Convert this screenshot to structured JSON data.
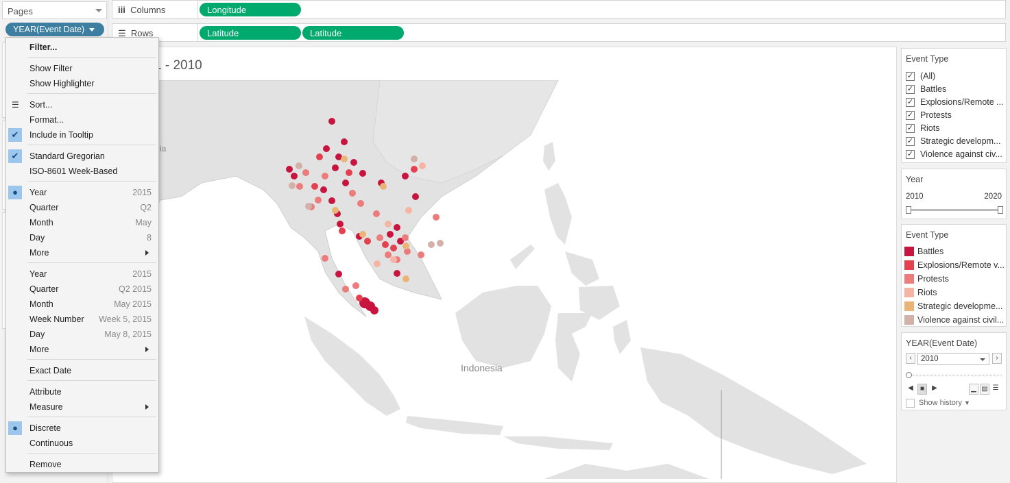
{
  "pages": {
    "header": "Pages",
    "pill_label": "YEAR(Event Date)"
  },
  "shelves": {
    "columns_label": "Columns",
    "rows_label": "Rows",
    "columns_pills": [
      "Longitude"
    ],
    "rows_pills": [
      "Latitude",
      "Latitude"
    ]
  },
  "view": {
    "title": "1 - 2010",
    "map_label": "Indonesia",
    "left_edge_label": "ia"
  },
  "menu": {
    "filter": "Filter...",
    "show_filter": "Show Filter",
    "show_highlighter": "Show Highlighter",
    "sort": "Sort...",
    "format": "Format...",
    "include_tooltip": "Include in Tooltip",
    "standard_gregorian": "Standard Gregorian",
    "iso_week": "ISO-8601 Week-Based",
    "discrete_parts": [
      {
        "label": "Year",
        "value": "2015"
      },
      {
        "label": "Quarter",
        "value": "Q2"
      },
      {
        "label": "Month",
        "value": "May"
      },
      {
        "label": "Day",
        "value": "8"
      },
      {
        "label": "More",
        "value": ""
      }
    ],
    "exact_parts": [
      {
        "label": "Year",
        "value": "2015"
      },
      {
        "label": "Quarter",
        "value": "Q2 2015"
      },
      {
        "label": "Month",
        "value": "May 2015"
      },
      {
        "label": "Week Number",
        "value": "Week 5, 2015"
      },
      {
        "label": "Day",
        "value": "May 8, 2015"
      },
      {
        "label": "More",
        "value": ""
      }
    ],
    "exact_date": "Exact Date",
    "attribute": "Attribute",
    "measure": "Measure",
    "discrete": "Discrete",
    "continuous": "Continuous",
    "remove": "Remove"
  },
  "filter_event_type": {
    "title": "Event Type",
    "items": [
      "(All)",
      "Battles",
      "Explosions/Remote ...",
      "Protests",
      "Riots",
      "Strategic developm...",
      "Violence against civ..."
    ]
  },
  "year_filter": {
    "title": "Year",
    "min": "2010",
    "max": "2020"
  },
  "legend": {
    "title": "Event Type",
    "items": [
      {
        "label": "Battles",
        "color": "#c8153f"
      },
      {
        "label": "Explosions/Remote v...",
        "color": "#e4404f"
      },
      {
        "label": "Protests",
        "color": "#ec7c7c"
      },
      {
        "label": "Riots",
        "color": "#f5b4a4"
      },
      {
        "label": "Strategic developme...",
        "color": "#e9b475"
      },
      {
        "label": "Violence against civil...",
        "color": "#d3b0a8"
      }
    ]
  },
  "pages_control": {
    "title": "YEAR(Event Date)",
    "selected": "2010",
    "show_history": "Show history"
  }
}
